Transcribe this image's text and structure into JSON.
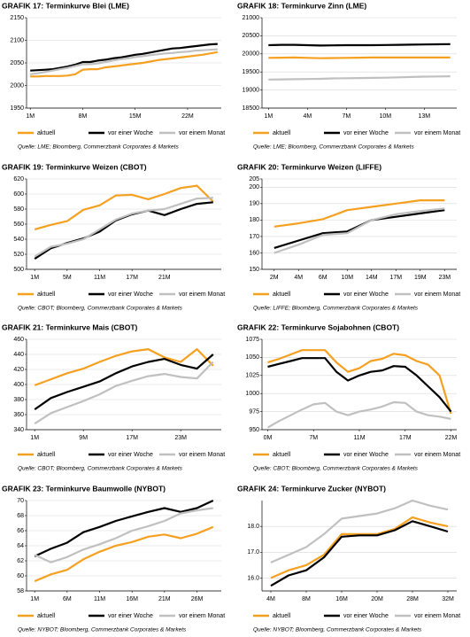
{
  "chart_data": [
    {
      "type": "line",
      "title": "GRAFIK 17: Terminkurve Blei (LME)",
      "source": "Quelle: LME; Bloomberg, Commerzbank Corporates & Markets",
      "categories": [
        "1M",
        null,
        null,
        null,
        null,
        null,
        null,
        "8M",
        null,
        null,
        null,
        null,
        null,
        null,
        "15M",
        null,
        null,
        null,
        null,
        null,
        null,
        "22M",
        null,
        null,
        null,
        null
      ],
      "ylim": [
        1950,
        2150
      ],
      "yticks": [
        1950,
        2000,
        2050,
        2100,
        2150
      ],
      "grid": true,
      "series": [
        {
          "name": "aktuell",
          "color": "#f5a020",
          "values": [
            2020,
            2020,
            2021,
            2021,
            2021,
            2022,
            2025,
            2035,
            2036,
            2036,
            2040,
            2042,
            2044,
            2046,
            2048,
            2050,
            2053,
            2056,
            2058,
            2060,
            2062,
            2064,
            2066,
            2068,
            2071,
            2074
          ]
        },
        {
          "name": "vor einer Woche",
          "color": "#000000",
          "values": [
            2033,
            2034,
            2035,
            2036,
            2039,
            2042,
            2046,
            2052,
            2052,
            2055,
            2057,
            2060,
            2062,
            2065,
            2068,
            2070,
            2073,
            2076,
            2079,
            2082,
            2083,
            2085,
            2087,
            2089,
            2091,
            2092
          ]
        },
        {
          "name": "vor einem Monat",
          "color": "#c0c0c0",
          "values": [
            2025,
            2027,
            2030,
            2033,
            2036,
            2039,
            2043,
            2047,
            2047,
            2049,
            2052,
            2055,
            2058,
            2060,
            2063,
            2065,
            2067,
            2069,
            2071,
            2072,
            2074,
            2075,
            2077,
            2078,
            2079,
            2080
          ]
        }
      ]
    },
    {
      "type": "line",
      "title": "GRAFIK 18: Terminkurve Zinn (LME)",
      "source": "Quelle: LME; Bloomberg, Commerzbank Corporates & Markets",
      "categories": [
        "1M",
        null,
        null,
        "4M",
        null,
        null,
        "7M",
        null,
        null,
        "10M",
        null,
        null,
        "13M",
        null,
        null
      ],
      "ylim": [
        18500,
        21000
      ],
      "yticks": [
        18500,
        19000,
        19500,
        20000,
        20500,
        21000
      ],
      "grid": true,
      "series": [
        {
          "name": "aktuell",
          "color": "#f5a020",
          "values": [
            19890,
            19895,
            19900,
            19890,
            19880,
            19885,
            19890,
            19895,
            19900,
            19900,
            19900,
            19900,
            19900,
            19900,
            19900
          ]
        },
        {
          "name": "vor einer Woche",
          "color": "#000000",
          "values": [
            20240,
            20250,
            20250,
            20240,
            20230,
            20235,
            20240,
            20240,
            20240,
            20245,
            20250,
            20255,
            20260,
            20265,
            20270
          ]
        },
        {
          "name": "vor einem Monat",
          "color": "#c0c0c0",
          "values": [
            19290,
            19295,
            19300,
            19305,
            19310,
            19320,
            19325,
            19330,
            19335,
            19340,
            19350,
            19360,
            19370,
            19375,
            19380
          ]
        }
      ]
    },
    {
      "type": "line",
      "title": "GRAFIK 19: Terminkurve Weizen (CBOT)",
      "source": "Quelle: CBOT; Bloomberg, Commerzbank Corporates & Markets",
      "categories": [
        "1M",
        null,
        "5M",
        null,
        "11M",
        null,
        "17M",
        null,
        "21M",
        null,
        null,
        null
      ],
      "ylim": [
        500,
        620
      ],
      "yticks": [
        500,
        520,
        540,
        560,
        580,
        600,
        620
      ],
      "grid": true,
      "series": [
        {
          "name": "aktuell",
          "color": "#f5a020",
          "values": [
            553,
            559,
            564,
            579,
            585,
            598,
            599,
            593,
            600,
            608,
            611,
            590
          ]
        },
        {
          "name": "vor einer Woche",
          "color": "#000000",
          "values": [
            514,
            528,
            535,
            541,
            550,
            565,
            573,
            578,
            572,
            580,
            587,
            589
          ]
        },
        {
          "name": "vor einem Monat",
          "color": "#c0c0c0",
          "values": [
            517,
            530,
            534,
            540,
            553,
            566,
            574,
            578,
            580,
            587,
            594,
            595
          ]
        }
      ]
    },
    {
      "type": "line",
      "title": "GRAFIK 20: Terminkurve Weizen (LIFFE)",
      "source": "Quelle: LIFFE; Bloomberg, Commerzbank Corporates & Markets",
      "categories": [
        "2M",
        "4M",
        "6M",
        "10M",
        "14M",
        "17M",
        "19M",
        "23M"
      ],
      "ylim": [
        150,
        205
      ],
      "yticks": [
        150,
        160,
        170,
        180,
        190,
        200,
        205
      ],
      "grid": true,
      "series": [
        {
          "name": "aktuell",
          "color": "#f5a020",
          "values": [
            176,
            178,
            180.5,
            186,
            188,
            190,
            192,
            192
          ]
        },
        {
          "name": "vor einer Woche",
          "color": "#000000",
          "values": [
            163,
            167.5,
            172,
            173,
            180,
            182,
            184,
            186
          ]
        },
        {
          "name": "vor einem Monat",
          "color": "#c0c0c0",
          "values": [
            160,
            165,
            171,
            172,
            180,
            183.5,
            185.5,
            187
          ]
        }
      ]
    },
    {
      "type": "line",
      "title": "GRAFIK 21: Terminkurve Mais (CBOT)",
      "source": "Quelle: CBOT; Bloomberg, Commerzbank Corporates & Markets",
      "categories": [
        "1M",
        null,
        null,
        "9M",
        null,
        null,
        "17M",
        null,
        null,
        "23M",
        null,
        null
      ],
      "ylim": [
        340,
        460
      ],
      "yticks": [
        340,
        360,
        380,
        400,
        420,
        440,
        460
      ],
      "grid": true,
      "series": [
        {
          "name": "aktuell",
          "color": "#f5a020",
          "values": [
            399,
            407,
            415,
            421,
            430,
            438,
            444,
            447,
            436,
            430,
            447,
            425
          ]
        },
        {
          "name": "vor einer Woche",
          "color": "#000000",
          "values": [
            367,
            382,
            390,
            397,
            404,
            415,
            424,
            430,
            434,
            426,
            421,
            440
          ]
        },
        {
          "name": "vor einem Monat",
          "color": "#c0c0c0",
          "values": [
            348,
            362,
            370,
            378,
            387,
            398,
            405,
            411,
            414,
            410,
            408,
            430
          ]
        }
      ]
    },
    {
      "type": "line",
      "title": "GRAFIK 22: Terminkurve Sojabohnen (CBOT)",
      "source": "Quelle: CBOT; Bloomberg, Commerzbank Corporates & Markets",
      "categories": [
        "0M",
        null,
        null,
        null,
        "7M",
        null,
        null,
        null,
        "11M",
        null,
        null,
        null,
        "17M",
        null,
        null,
        null,
        "22M"
      ],
      "ylim": [
        950,
        1075
      ],
      "yticks": [
        950,
        975,
        1000,
        1025,
        1050,
        1075
      ],
      "grid": true,
      "series": [
        {
          "name": "aktuell",
          "color": "#f5a020",
          "values": [
            1043,
            1048,
            1054,
            1060,
            1060,
            1060,
            1043,
            1030,
            1035,
            1045,
            1048,
            1055,
            1053,
            1045,
            1040,
            1025,
            972
          ]
        },
        {
          "name": "vor einer Woche",
          "color": "#000000",
          "values": [
            1037,
            1041,
            1045,
            1049,
            1049,
            1049,
            1030,
            1018,
            1025,
            1030,
            1032,
            1038,
            1037,
            1025,
            1010,
            995,
            975
          ]
        },
        {
          "name": "vor einem Monat",
          "color": "#c0c0c0",
          "values": [
            953,
            962,
            970,
            978,
            985,
            987,
            975,
            970,
            975,
            978,
            982,
            988,
            987,
            975,
            970,
            968,
            965
          ]
        }
      ]
    },
    {
      "type": "line",
      "title": "GRAFIK 23: Terminkurve Baumwolle (NYBOT)",
      "source": "Quelle: NYBOT; Bloomberg, Commerzbank Corporates & Markets",
      "categories": [
        "1M",
        null,
        "6M",
        null,
        "11M",
        null,
        "16M",
        null,
        "21M",
        null,
        "26M",
        null
      ],
      "ylim": [
        58,
        70
      ],
      "yticks": [
        58,
        60,
        62,
        64,
        66,
        68,
        70
      ],
      "grid": true,
      "series": [
        {
          "name": "aktuell",
          "color": "#f5a020",
          "values": [
            59.3,
            60.2,
            60.8,
            62.2,
            63.2,
            64.0,
            64.5,
            65.2,
            65.5,
            65.0,
            65.6,
            66.5
          ]
        },
        {
          "name": "vor einer Woche",
          "color": "#000000",
          "values": [
            62.6,
            63.6,
            64.4,
            65.8,
            66.5,
            67.3,
            67.9,
            68.5,
            69.0,
            68.5,
            69.0,
            70.0
          ]
        },
        {
          "name": "vor einem Monat",
          "color": "#c0c0c0",
          "values": [
            62.8,
            61.8,
            62.5,
            63.5,
            64.2,
            65.0,
            66.0,
            66.6,
            67.3,
            68.3,
            68.7,
            69.0
          ]
        }
      ]
    },
    {
      "type": "line",
      "title": "GRAFIK 24: Terminkurve Zucker (NYBOT)",
      "source": "Quelle: NYBOT; Bloomberg, Commerzbank Corporates & Markets",
      "categories": [
        "4M",
        null,
        "8M",
        null,
        "16M",
        null,
        "20M",
        null,
        "28M",
        null,
        "32M"
      ],
      "ylim": [
        15.5,
        19
      ],
      "yticks": [
        {
          "value": 16,
          "label": "16.0"
        },
        {
          "value": 17,
          "label": "17.0"
        },
        {
          "value": 18,
          "label": "18.0"
        }
      ],
      "grid": true,
      "series": [
        {
          "name": "aktuell",
          "color": "#f5a020",
          "values": [
            16.0,
            16.3,
            16.5,
            16.9,
            17.7,
            17.7,
            17.7,
            17.9,
            18.35,
            18.15,
            18.0
          ]
        },
        {
          "name": "vor einer Woche",
          "color": "#000000",
          "values": [
            15.7,
            16.1,
            16.3,
            16.8,
            17.6,
            17.65,
            17.65,
            17.85,
            18.2,
            18.0,
            17.8
          ]
        },
        {
          "name": "vor einem Monat",
          "color": "#c0c0c0",
          "values": [
            16.6,
            16.9,
            17.2,
            17.7,
            18.3,
            18.4,
            18.5,
            18.7,
            19.0,
            18.8,
            18.65
          ]
        }
      ]
    }
  ]
}
